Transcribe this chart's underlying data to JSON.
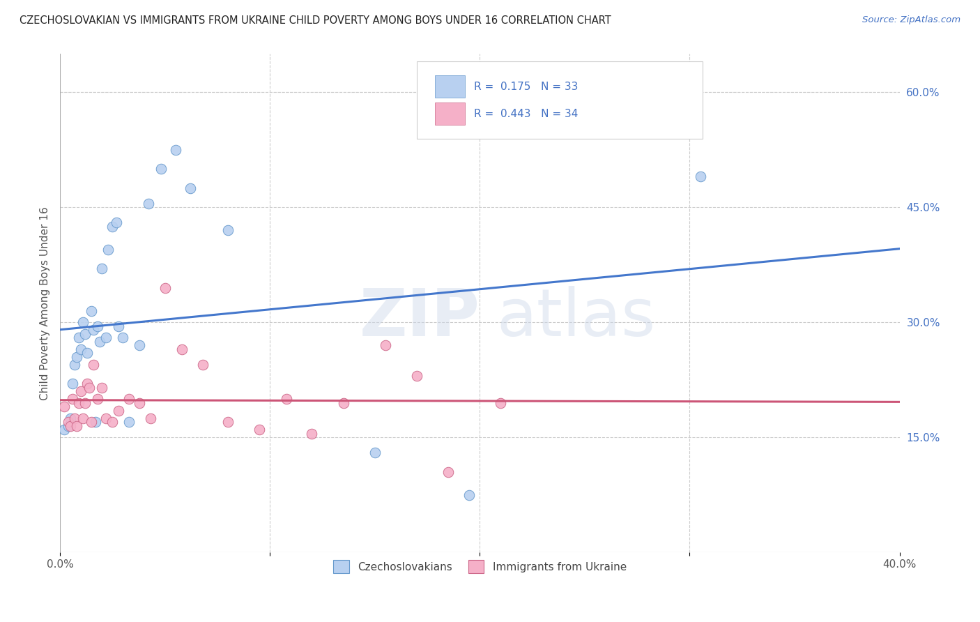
{
  "title": "CZECHOSLOVAKIAN VS IMMIGRANTS FROM UKRAINE CHILD POVERTY AMONG BOYS UNDER 16 CORRELATION CHART",
  "source": "Source: ZipAtlas.com",
  "ylabel": "Child Poverty Among Boys Under 16",
  "xlim": [
    0.0,
    0.4
  ],
  "ylim": [
    0.0,
    0.65
  ],
  "xticks": [
    0.0,
    0.1,
    0.2,
    0.3,
    0.4
  ],
  "xticklabels": [
    "0.0%",
    "",
    "",
    "",
    "40.0%"
  ],
  "yticks_right": [
    0.15,
    0.3,
    0.45,
    0.6
  ],
  "ytick_right_labels": [
    "15.0%",
    "30.0%",
    "45.0%",
    "60.0%"
  ],
  "grid_color": "#cccccc",
  "background_color": "#ffffff",
  "legend_R1": "0.175",
  "legend_N1": "33",
  "legend_R2": "0.443",
  "legend_N2": "34",
  "watermark_text": "ZIP atlas",
  "blue_color": "#b8d0f0",
  "pink_color": "#f5b0c8",
  "blue_edge_color": "#6699cc",
  "pink_edge_color": "#cc6688",
  "blue_line_color": "#4477cc",
  "pink_line_color": "#cc5577",
  "blue_x": [
    0.002,
    0.004,
    0.005,
    0.006,
    0.007,
    0.008,
    0.009,
    0.01,
    0.011,
    0.012,
    0.013,
    0.015,
    0.016,
    0.017,
    0.018,
    0.019,
    0.02,
    0.022,
    0.023,
    0.025,
    0.027,
    0.028,
    0.03,
    0.033,
    0.038,
    0.042,
    0.048,
    0.055,
    0.062,
    0.08,
    0.15,
    0.195,
    0.305
  ],
  "blue_y": [
    0.16,
    0.165,
    0.175,
    0.22,
    0.245,
    0.255,
    0.28,
    0.265,
    0.3,
    0.285,
    0.26,
    0.315,
    0.29,
    0.17,
    0.295,
    0.275,
    0.37,
    0.28,
    0.395,
    0.425,
    0.43,
    0.295,
    0.28,
    0.17,
    0.27,
    0.455,
    0.5,
    0.525,
    0.475,
    0.42,
    0.13,
    0.075,
    0.49
  ],
  "pink_x": [
    0.002,
    0.004,
    0.005,
    0.006,
    0.007,
    0.008,
    0.009,
    0.01,
    0.011,
    0.012,
    0.013,
    0.014,
    0.015,
    0.016,
    0.018,
    0.02,
    0.022,
    0.025,
    0.028,
    0.033,
    0.038,
    0.043,
    0.05,
    0.058,
    0.068,
    0.08,
    0.095,
    0.108,
    0.12,
    0.135,
    0.155,
    0.17,
    0.185,
    0.21
  ],
  "pink_y": [
    0.19,
    0.17,
    0.165,
    0.2,
    0.175,
    0.165,
    0.195,
    0.21,
    0.175,
    0.195,
    0.22,
    0.215,
    0.17,
    0.245,
    0.2,
    0.215,
    0.175,
    0.17,
    0.185,
    0.2,
    0.195,
    0.175,
    0.345,
    0.265,
    0.245,
    0.17,
    0.16,
    0.2,
    0.155,
    0.195,
    0.27,
    0.23,
    0.105,
    0.195
  ]
}
